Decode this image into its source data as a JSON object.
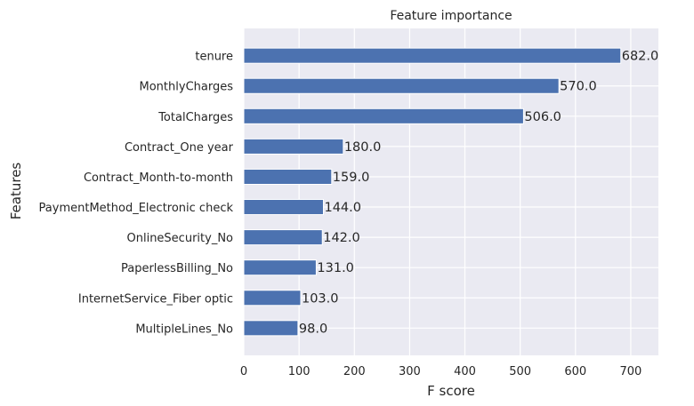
{
  "chart_data": {
    "type": "bar",
    "orientation": "horizontal",
    "title": "Feature importance",
    "xlabel": "F score",
    "ylabel": "Features",
    "categories": [
      "tenure",
      "MonthlyCharges",
      "TotalCharges",
      "Contract_One year",
      "Contract_Month-to-month",
      "PaymentMethod_Electronic check",
      "OnlineSecurity_No",
      "PaperlessBilling_No",
      "InternetService_Fiber optic",
      "MultipleLines_No"
    ],
    "values": [
      682.0,
      570.0,
      506.0,
      180.0,
      159.0,
      144.0,
      142.0,
      131.0,
      103.0,
      98.0
    ],
    "value_labels": [
      "682.0",
      "570.0",
      "506.0",
      "180.0",
      "159.0",
      "144.0",
      "142.0",
      "131.0",
      "103.0",
      "98.0"
    ],
    "xlim": [
      0,
      750
    ],
    "xticks": [
      0,
      100,
      200,
      300,
      400,
      500,
      600,
      700
    ],
    "xtick_labels": [
      "0",
      "100",
      "200",
      "300",
      "400",
      "500",
      "600",
      "700"
    ],
    "grid": true,
    "bar_color": "#4c72b0",
    "background_color": "#eaeaf2",
    "grid_color": "#ffffff"
  }
}
